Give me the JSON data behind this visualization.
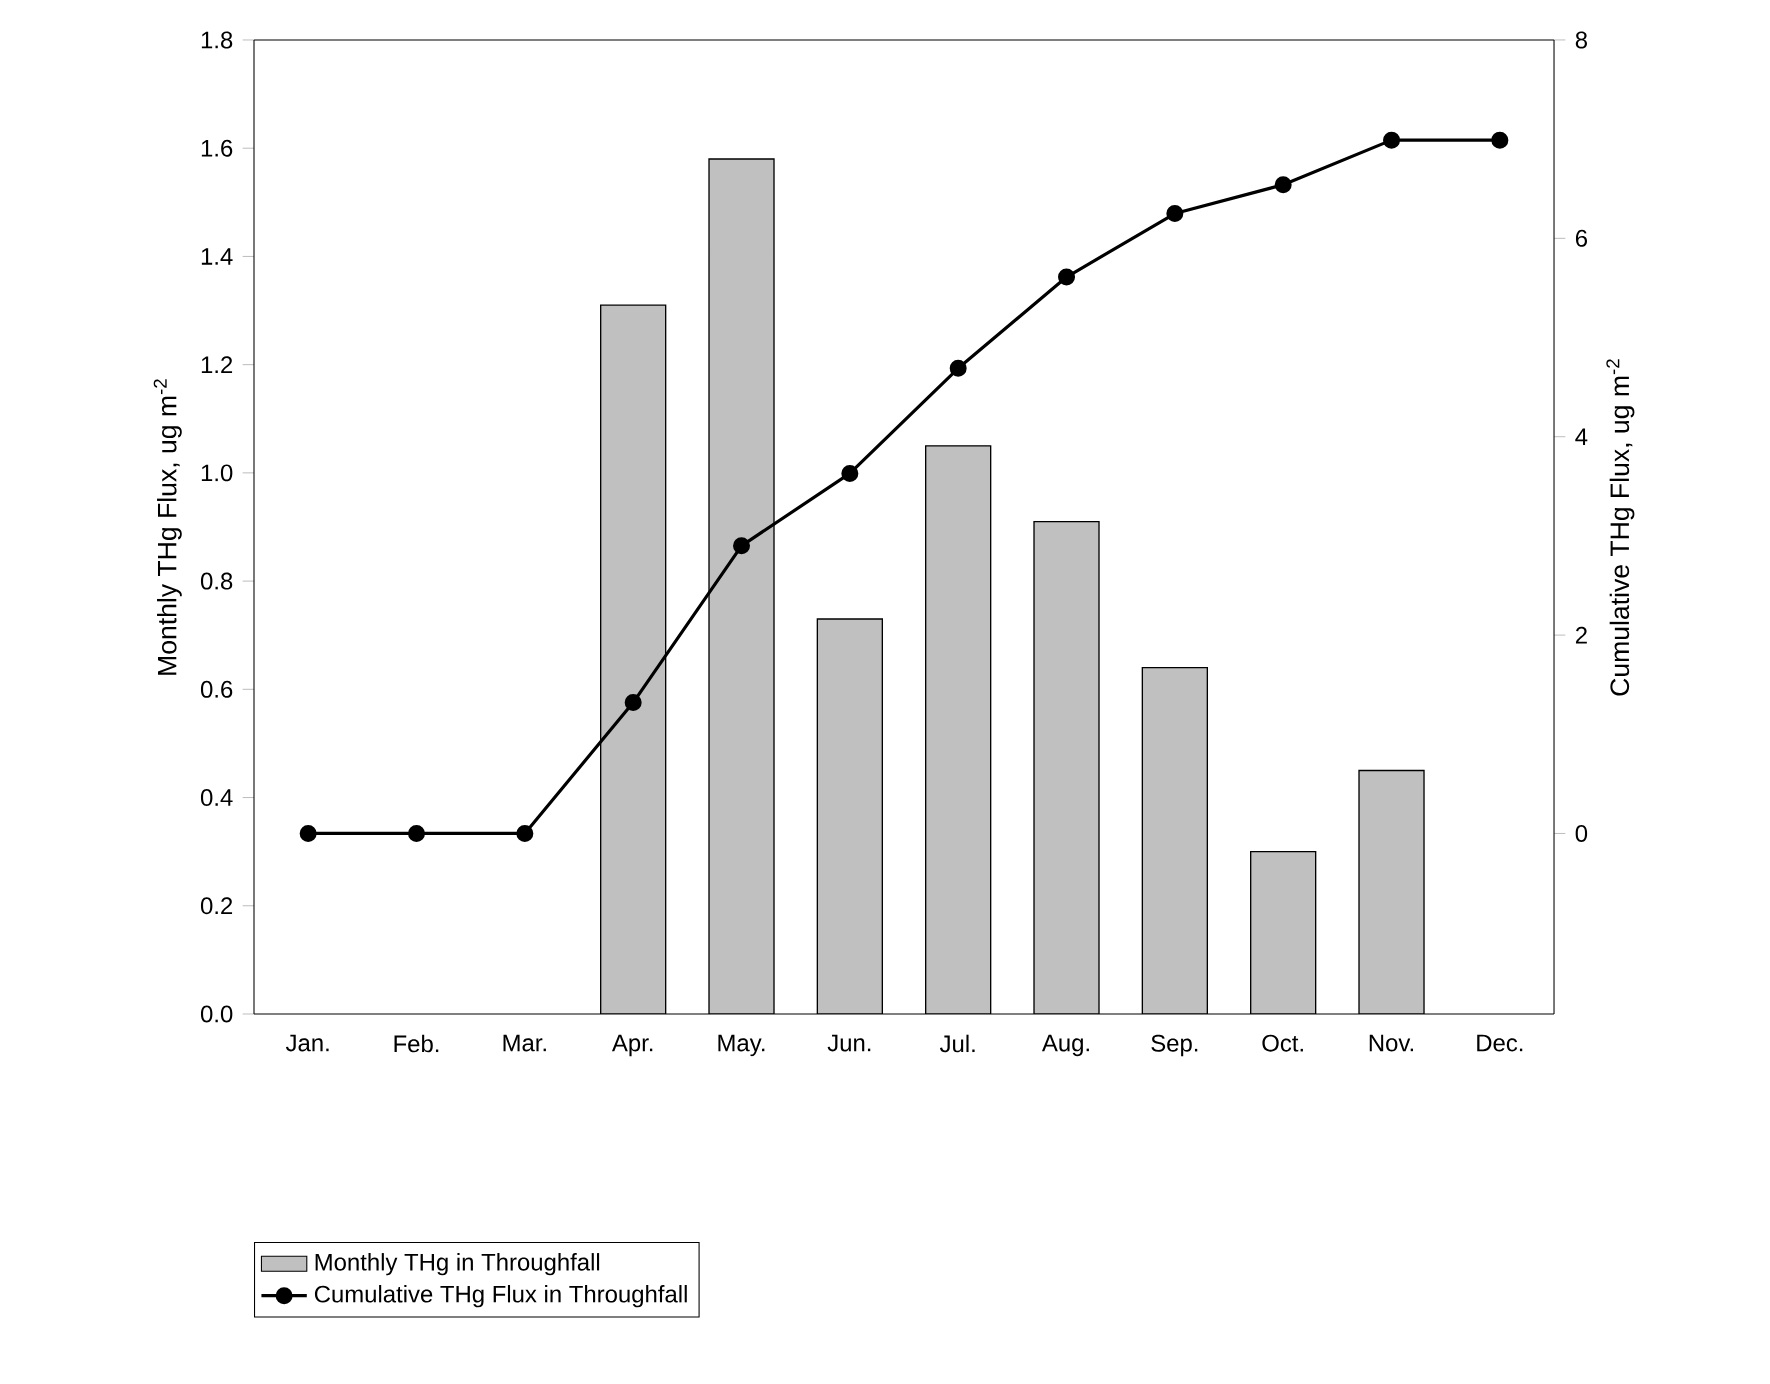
{
  "chart_data": {
    "type": "bar",
    "ylabel": "Monthly THg Flux, ug m$^{-2}$",
    "y2label": "Cumulative THg Flux, ug m$^{-2}$",
    "categories": [
      "Jan.",
      "Feb.",
      "Mar.",
      "Apr.",
      "May.",
      "Jun.",
      "Jul.",
      "Aug.",
      "Sep.",
      "Oct.",
      "Nov.",
      "Dec."
    ],
    "series": [
      {
        "name": "Monthly THg in Throughfall",
        "color": "#c0c0c0",
        "values": [
          null,
          null,
          null,
          1.31,
          1.58,
          0.73,
          1.05,
          0.91,
          0.64,
          0.3,
          0.45,
          null
        ]
      },
      {
        "name": "Cumulative THg Flux in Throughfall",
        "type": "line",
        "axis": "y2",
        "color": "#000000",
        "marker": "circle",
        "line_style": "solid",
        "values": [
          0,
          0,
          0,
          1.32,
          2.9,
          3.63,
          4.69,
          5.61,
          6.25,
          6.54,
          6.99,
          6.99
        ]
      }
    ],
    "ylim": [
      0,
      1.8
    ],
    "yticks": [
      {
        "value": 0,
        "label": "0.0"
      },
      {
        "value": 0.2,
        "label": "0.2"
      },
      {
        "value": 0.4,
        "label": "0.4"
      },
      {
        "value": 0.6,
        "label": "0.6"
      },
      {
        "value": 0.8,
        "label": "0.8"
      },
      {
        "value": 1.0,
        "label": "1.0"
      },
      {
        "value": 1.2,
        "label": "1.2"
      },
      {
        "value": 1.4,
        "label": "1.4"
      },
      {
        "value": 1.6,
        "label": "1.6"
      },
      {
        "value": 1.8,
        "label": "1.8"
      }
    ],
    "y2lim": [
      -1.82,
      8
    ],
    "y2ticks": [
      0,
      2,
      4,
      6,
      8
    ],
    "legend": "bottom left",
    "grid": false
  }
}
